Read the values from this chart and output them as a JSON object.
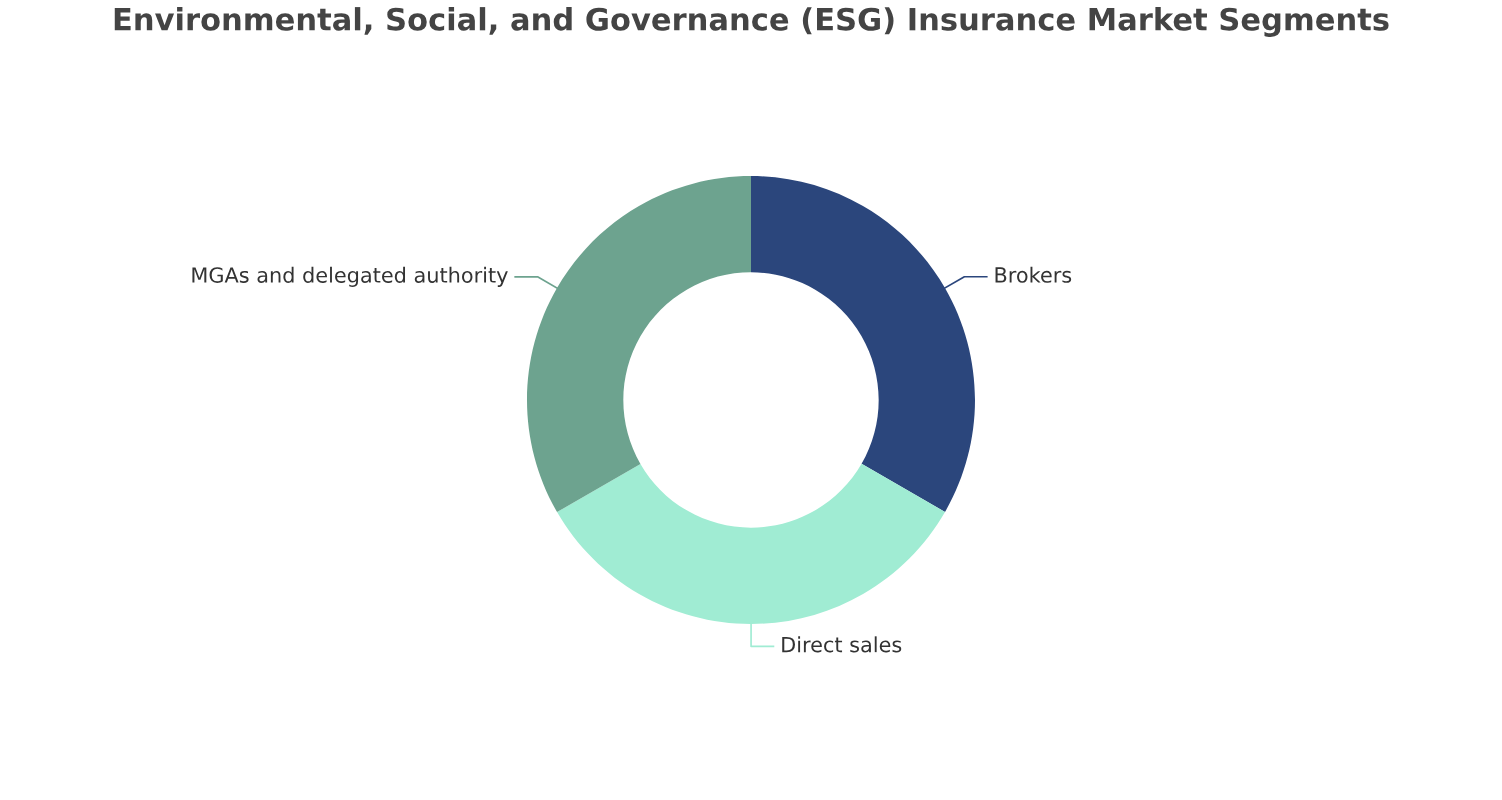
{
  "chart_data": {
    "type": "donut",
    "title": "Environmental, Social, and Governance (ESG) Insurance Market Segments",
    "categories": [
      "Brokers",
      "Direct sales",
      "MGAs and delegated authority"
    ],
    "values": [
      33.33,
      33.33,
      33.34
    ],
    "colors": [
      "#2b467c",
      "#a0ecd3",
      "#6da38f"
    ]
  }
}
